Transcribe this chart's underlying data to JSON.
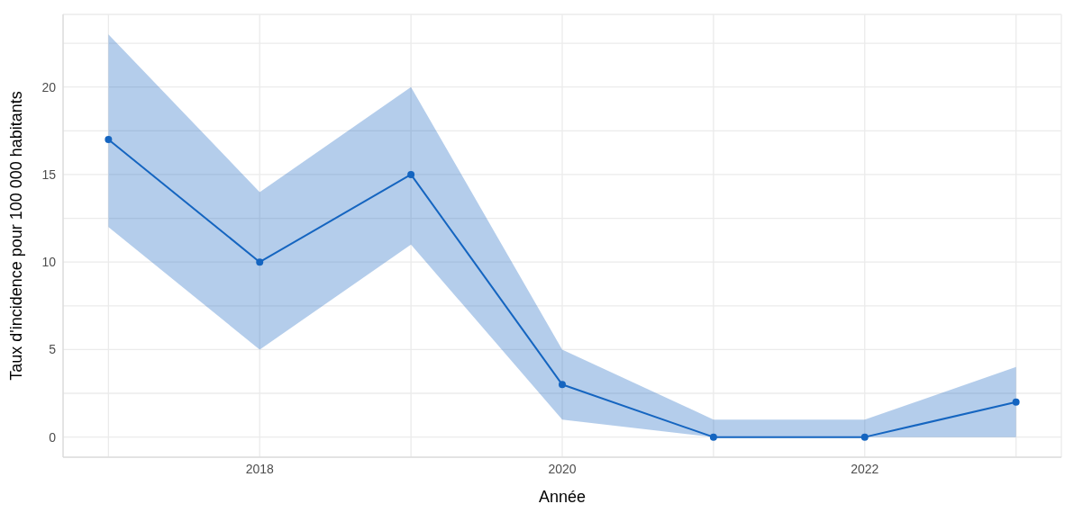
{
  "chart_data": {
    "type": "line",
    "xlabel": "Année",
    "ylabel": "Taux d'incidence pour 100 000 habitants",
    "x": [
      2017,
      2018,
      2019,
      2020,
      2021,
      2022,
      2023
    ],
    "series": [
      {
        "color": "#1565c0",
        "values": [
          17,
          10,
          15,
          3,
          0,
          0,
          2
        ],
        "lower": [
          12,
          5,
          11,
          1,
          0,
          0,
          0
        ],
        "upper": [
          23,
          14,
          20,
          5,
          1,
          1,
          4
        ]
      }
    ],
    "xlim": [
      2016.7,
      2023.3
    ],
    "ylim": [
      -1.15,
      24.15
    ],
    "xticks": [
      {
        "value": 2017,
        "label": null
      },
      2018,
      {
        "value": 2019,
        "label": null
      },
      2020,
      {
        "value": 2021,
        "label": null
      },
      2022,
      {
        "value": 2023,
        "label": null
      }
    ],
    "yticks": [
      0,
      {
        "value": 2.5,
        "label": null
      },
      5,
      {
        "value": 7.5,
        "label": null
      },
      10,
      {
        "value": 12.5,
        "label": null
      },
      15,
      {
        "value": 17.5,
        "label": null
      },
      20,
      {
        "value": 22.5,
        "label": null
      }
    ],
    "grid": true,
    "marker": "circle",
    "line_style": "solid"
  }
}
